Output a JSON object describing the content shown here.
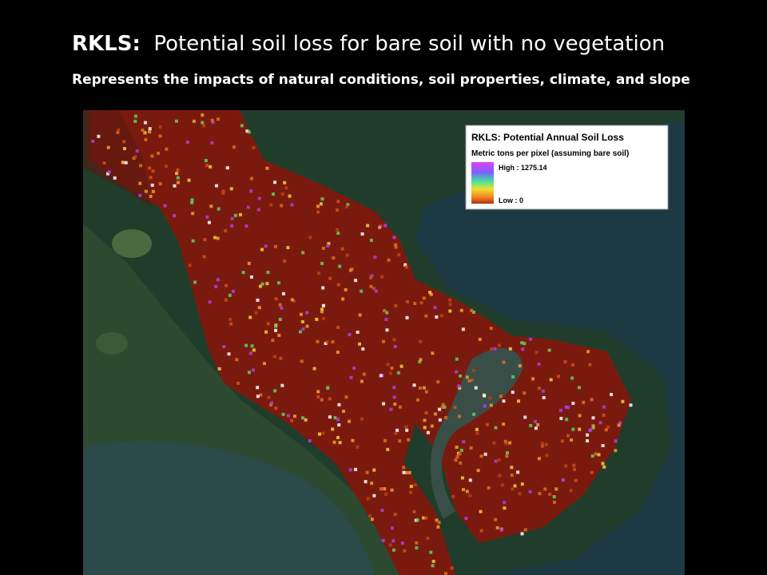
{
  "header": {
    "title_key": "RKLS:",
    "title_text": "Potential soil loss for bare soil with no vegetation",
    "subtitle": "Represents the impacts of natural conditions, soil properties, climate, and slope"
  },
  "legend": {
    "title": "RKLS:  Potential Annual Soil Loss",
    "subtitle": "Metric tons per pixel (assuming bare soil)",
    "high": "High : 1275.14",
    "low": "Low : 0"
  }
}
